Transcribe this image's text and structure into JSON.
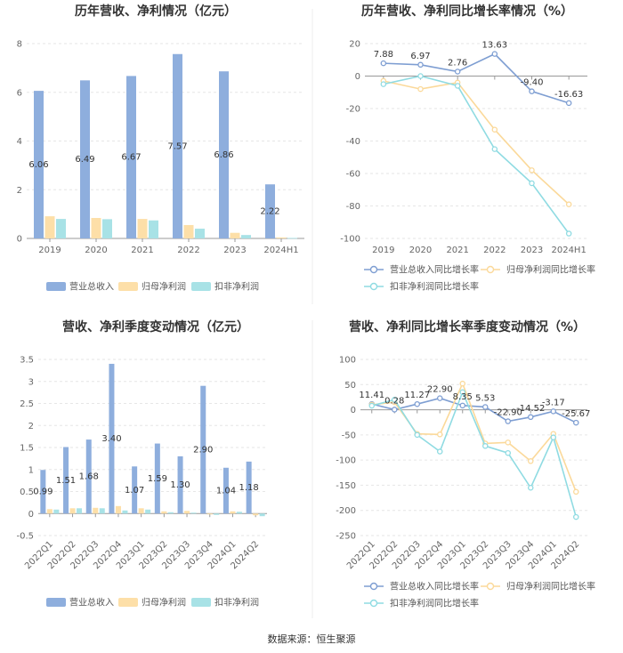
{
  "footer": {
    "source": "数据来源：恒生聚源"
  },
  "colors": {
    "revenue": "#8eaedd",
    "net": "#fddfa8",
    "deduct": "#a8e2e6",
    "line_rev": "#7e9ed2",
    "line_net": "#fbd99a",
    "line_ded": "#8fdbe2",
    "grid": "#e6e6e6",
    "axis": "#999999"
  },
  "chart_data": [
    {
      "type": "bar",
      "title": "历年营收、净利情况（亿元）",
      "categories": [
        "2019",
        "2020",
        "2021",
        "2022",
        "2023",
        "2024H1"
      ],
      "ylim": [
        0,
        8
      ],
      "yticks": [
        0,
        2,
        4,
        6,
        8
      ],
      "series": [
        {
          "name": "营业总收入",
          "values": [
            6.06,
            6.49,
            6.67,
            7.57,
            6.86,
            2.22
          ],
          "labels": [
            "6.06",
            "6.49",
            "6.67",
            "7.57",
            "6.86",
            "2.22"
          ]
        },
        {
          "name": "归母净利润",
          "values": [
            0.91,
            0.84,
            0.8,
            0.55,
            0.23,
            0.04
          ]
        },
        {
          "name": "扣非净利润",
          "values": [
            0.8,
            0.79,
            0.74,
            0.4,
            0.14,
            0.02
          ]
        }
      ]
    },
    {
      "type": "line",
      "title": "历年营收、净利同比增长率情况（%）",
      "categories": [
        "2019",
        "2020",
        "2021",
        "2022",
        "2023",
        "2024H1"
      ],
      "ylim": [
        -100,
        20
      ],
      "yticks": [
        20,
        0,
        -20,
        -40,
        -60,
        -80,
        -100
      ],
      "series": [
        {
          "name": "营业总收入同比增长率",
          "values": [
            7.88,
            6.97,
            2.76,
            13.63,
            -9.4,
            -16.63
          ],
          "labels": [
            "7.88",
            "6.97",
            "2.76",
            "13.63",
            "-9.40",
            "-16.63"
          ]
        },
        {
          "name": "归母净利润同比增长率",
          "values": [
            -3,
            -8,
            -4,
            -33,
            -58,
            -79
          ]
        },
        {
          "name": "扣非净利润同比增长率",
          "values": [
            -5,
            0,
            -6,
            -45,
            -66,
            -97
          ]
        }
      ]
    },
    {
      "type": "bar",
      "title": "营收、净利季度变动情况（亿元）",
      "categories": [
        "2022Q1",
        "2022Q2",
        "2022Q3",
        "2022Q4",
        "2023Q1",
        "2023Q2",
        "2023Q3",
        "2023Q4",
        "2024Q1",
        "2024Q2"
      ],
      "ylim": [
        -0.5,
        3.5
      ],
      "yticks": [
        3.5,
        3,
        2.5,
        2,
        1.5,
        1,
        0.5,
        0,
        -0.5
      ],
      "series": [
        {
          "name": "营业总收入",
          "values": [
            0.99,
            1.51,
            1.68,
            3.4,
            1.07,
            1.59,
            1.3,
            2.9,
            1.04,
            1.18
          ],
          "labels": [
            "0.99",
            "1.51",
            "1.68",
            "3.40",
            "1.07",
            "1.59",
            "1.30",
            "2.90",
            "1.04",
            "1.18"
          ]
        },
        {
          "name": "归母净利润",
          "values": [
            0.1,
            0.12,
            0.13,
            0.17,
            0.12,
            0.05,
            0.06,
            -0.02,
            0.05,
            -0.04
          ]
        },
        {
          "name": "扣非净利润",
          "values": [
            0.09,
            0.12,
            0.12,
            0.07,
            0.09,
            0.03,
            0.02,
            -0.03,
            0.04,
            -0.06
          ]
        }
      ]
    },
    {
      "type": "line",
      "title": "营收、净利同比增长率季度变动情况（%）",
      "categories": [
        "2022Q1",
        "2022Q2",
        "2022Q3",
        "2022Q4",
        "2023Q1",
        "2023Q2",
        "2023Q3",
        "2023Q4",
        "2024Q1",
        "2024Q2"
      ],
      "ylim": [
        -250,
        100
      ],
      "yticks": [
        100,
        50,
        0,
        -50,
        -100,
        -150,
        -200,
        -250
      ],
      "series": [
        {
          "name": "营业总收入同比增长率",
          "values": [
            11.41,
            0.28,
            11.27,
            22.9,
            8.35,
            5.53,
            -22.9,
            -14.52,
            -3.17,
            -25.67
          ],
          "labels": [
            "11.41",
            "0.28",
            "11.27",
            "22.90",
            "8.35",
            "5.53",
            "-22.90",
            "-14.52",
            "-3.17",
            "-25.67"
          ]
        },
        {
          "name": "归母净利润同比增长率",
          "values": [
            10,
            15,
            -48,
            -49,
            52,
            -67,
            -65,
            -102,
            -48,
            -163
          ]
        },
        {
          "name": "扣非净利润同比增长率",
          "values": [
            8,
            20,
            -50,
            -83,
            35,
            -72,
            -86,
            -155,
            -55,
            -213
          ]
        }
      ]
    }
  ]
}
